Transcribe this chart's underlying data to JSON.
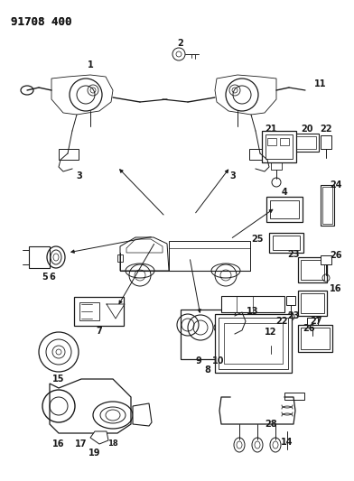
{
  "title": "91708 400",
  "bg": "#f5f5f0",
  "lc": "#1a1a1a",
  "tc": "#1a1a1a",
  "fig_w": 3.92,
  "fig_h": 5.33,
  "dpi": 100
}
